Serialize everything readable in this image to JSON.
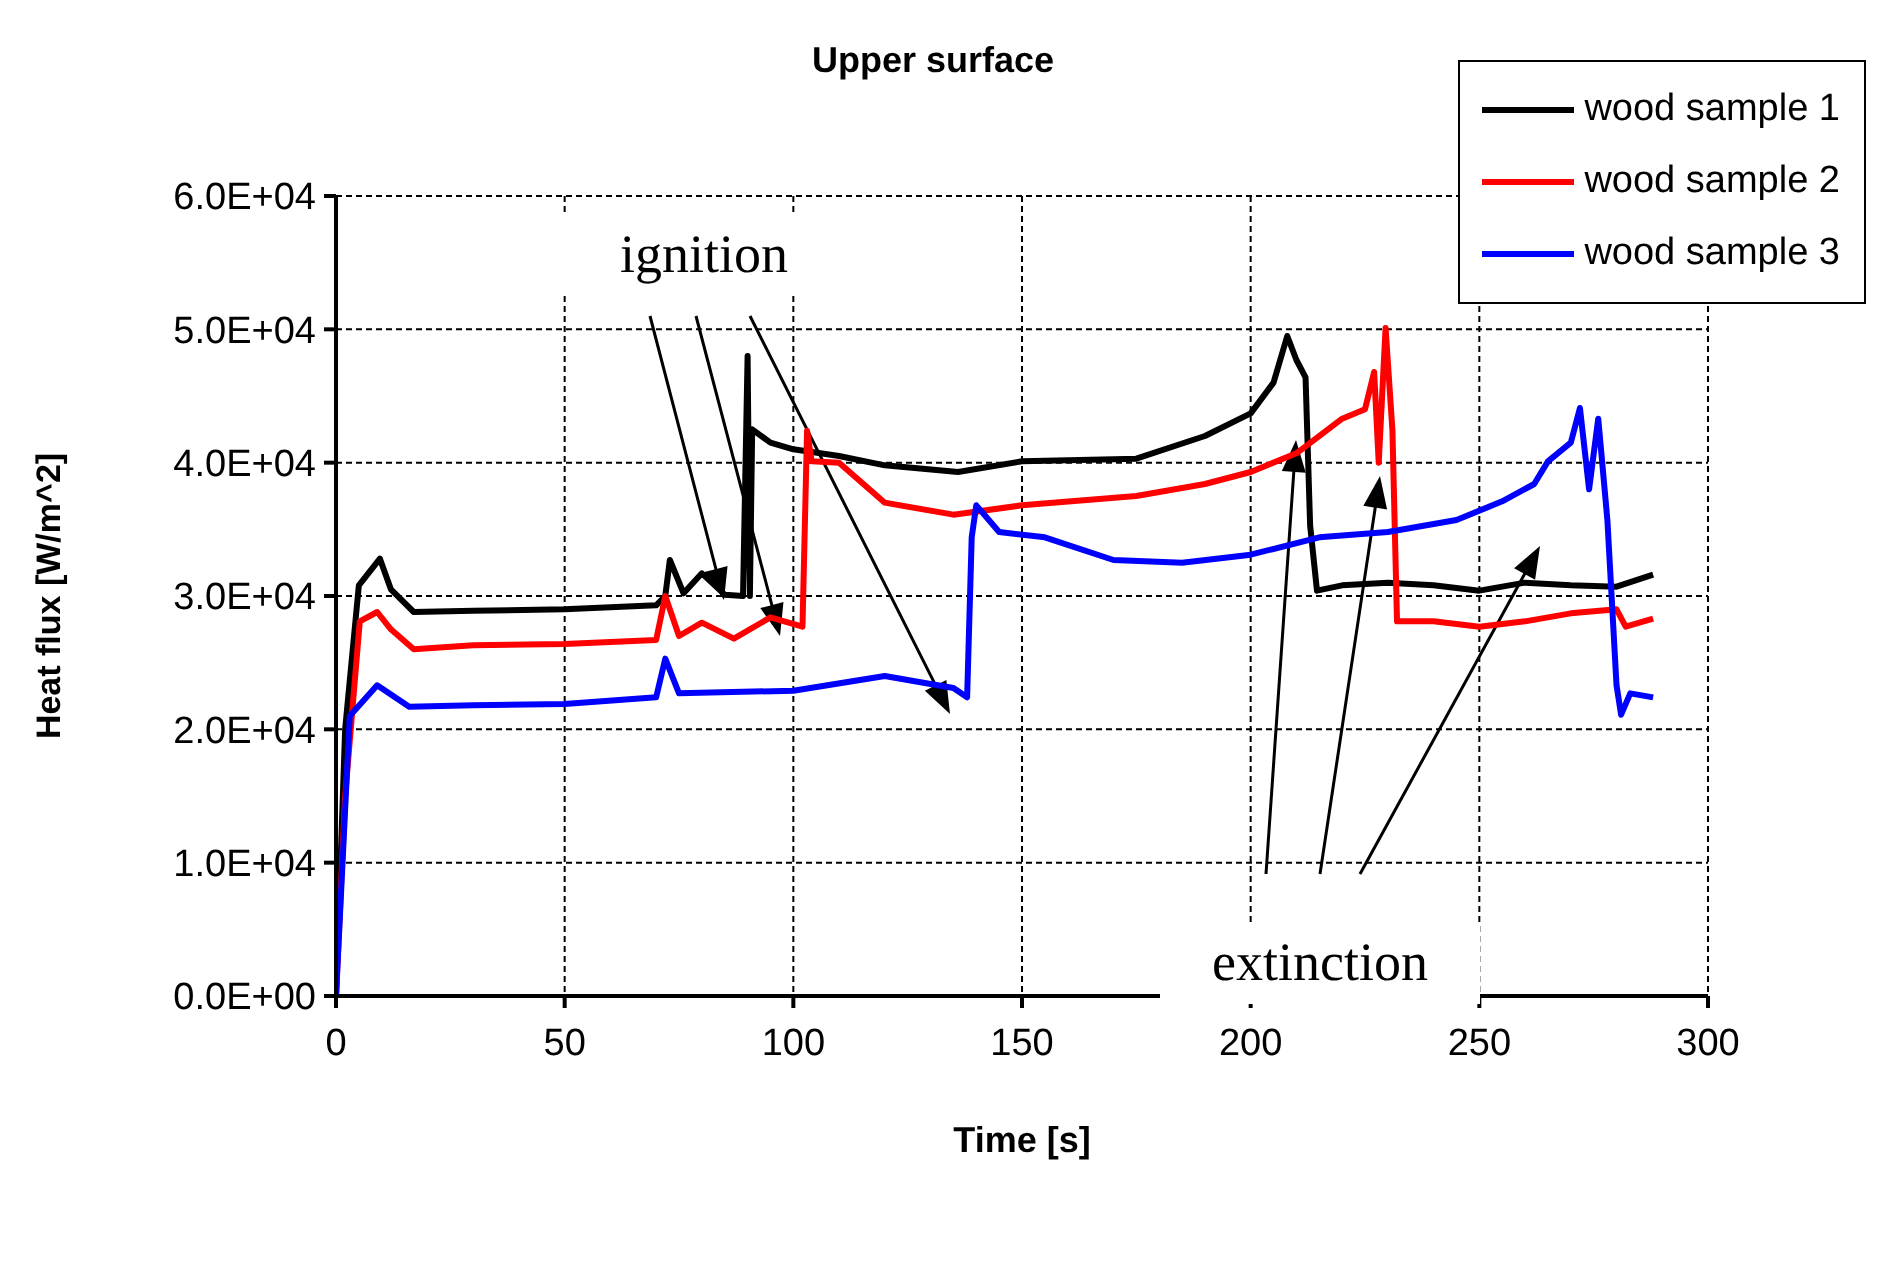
{
  "chart_data": {
    "type": "line",
    "title": "Upper surface",
    "xlabel": "Time [s]",
    "ylabel": "Heat flux [W/m^2]",
    "xlim": [
      0,
      300
    ],
    "xticks": [
      0,
      50,
      100,
      150,
      200,
      250,
      300
    ],
    "ylim": [
      0,
      60000
    ],
    "yticks": [
      {
        "value": 0,
        "label": "0.0E+00"
      },
      {
        "value": 10000,
        "label": "1.0E+04"
      },
      {
        "value": 20000,
        "label": "2.0E+04"
      },
      {
        "value": 30000,
        "label": "3.0E+04"
      },
      {
        "value": 40000,
        "label": "4.0E+04"
      },
      {
        "value": 50000,
        "label": "5.0E+04"
      },
      {
        "value": 60000,
        "label": "6.0E+04"
      }
    ],
    "grid": true,
    "legend": "top right",
    "marker": "none",
    "line_style": "solid",
    "annotations": [
      "ignition",
      "extinction"
    ],
    "series": [
      {
        "name": "wood sample 1",
        "color": "#000000",
        "x": [
          0,
          2,
          5,
          9.6,
          12,
          17,
          30,
          50,
          70,
          72,
          73,
          76,
          80,
          85,
          89,
          90,
          90.5,
          91,
          95,
          100,
          110,
          120,
          136,
          150,
          175,
          190,
          200,
          205,
          208,
          210,
          212,
          213,
          214.5,
          220,
          230,
          240,
          250,
          260,
          270,
          280,
          288
        ],
        "values": [
          0,
          20000,
          30800,
          32800,
          30500,
          28800,
          28900,
          29000,
          29300,
          30000,
          32700,
          30200,
          31700,
          30100,
          30000,
          48000,
          30000,
          42500,
          41500,
          41000,
          40500,
          39800,
          39300,
          40100,
          40300,
          42000,
          43700,
          46000,
          49500,
          47700,
          46400,
          35300,
          30400,
          30800,
          31000,
          30800,
          30400,
          31000,
          30800,
          30700,
          31600
        ]
      },
      {
        "name": "wood sample 2",
        "color": "#ff0000",
        "x": [
          0,
          2,
          5.2,
          9,
          12,
          17,
          30,
          50,
          70,
          72,
          75,
          80,
          87,
          95,
          102,
          103,
          104,
          110,
          120,
          135,
          150,
          175,
          190,
          200,
          210,
          220,
          225,
          227,
          228,
          229.5,
          231,
          232,
          240,
          250,
          260,
          270,
          280,
          282,
          288
        ],
        "values": [
          0,
          15000,
          28100,
          28800,
          27500,
          26000,
          26300,
          26400,
          26700,
          30000,
          27000,
          28000,
          26800,
          28400,
          27700,
          42400,
          40100,
          40000,
          37000,
          36100,
          36800,
          37500,
          38400,
          39300,
          40700,
          43300,
          44000,
          46800,
          40000,
          50100,
          42400,
          28100,
          28100,
          27700,
          28100,
          28700,
          29000,
          27700,
          28300
        ]
      },
      {
        "name": "wood sample 3",
        "color": "#0000ff",
        "x": [
          0,
          3,
          9,
          16,
          30,
          50,
          70,
          72,
          75,
          100,
          120,
          135,
          138,
          139,
          140,
          145,
          155,
          170,
          185,
          200,
          215,
          230,
          245,
          255,
          262,
          265,
          270,
          272,
          274,
          276,
          278,
          280,
          281,
          283,
          288
        ],
        "values": [
          0,
          21000,
          23300,
          21700,
          21800,
          21900,
          22400,
          25300,
          22700,
          22900,
          24000,
          23100,
          22400,
          34400,
          36800,
          34800,
          34400,
          32700,
          32500,
          33100,
          34400,
          34800,
          35700,
          37100,
          38400,
          40100,
          41500,
          44100,
          38000,
          43300,
          35700,
          23300,
          21100,
          22700,
          22400
        ]
      }
    ]
  }
}
